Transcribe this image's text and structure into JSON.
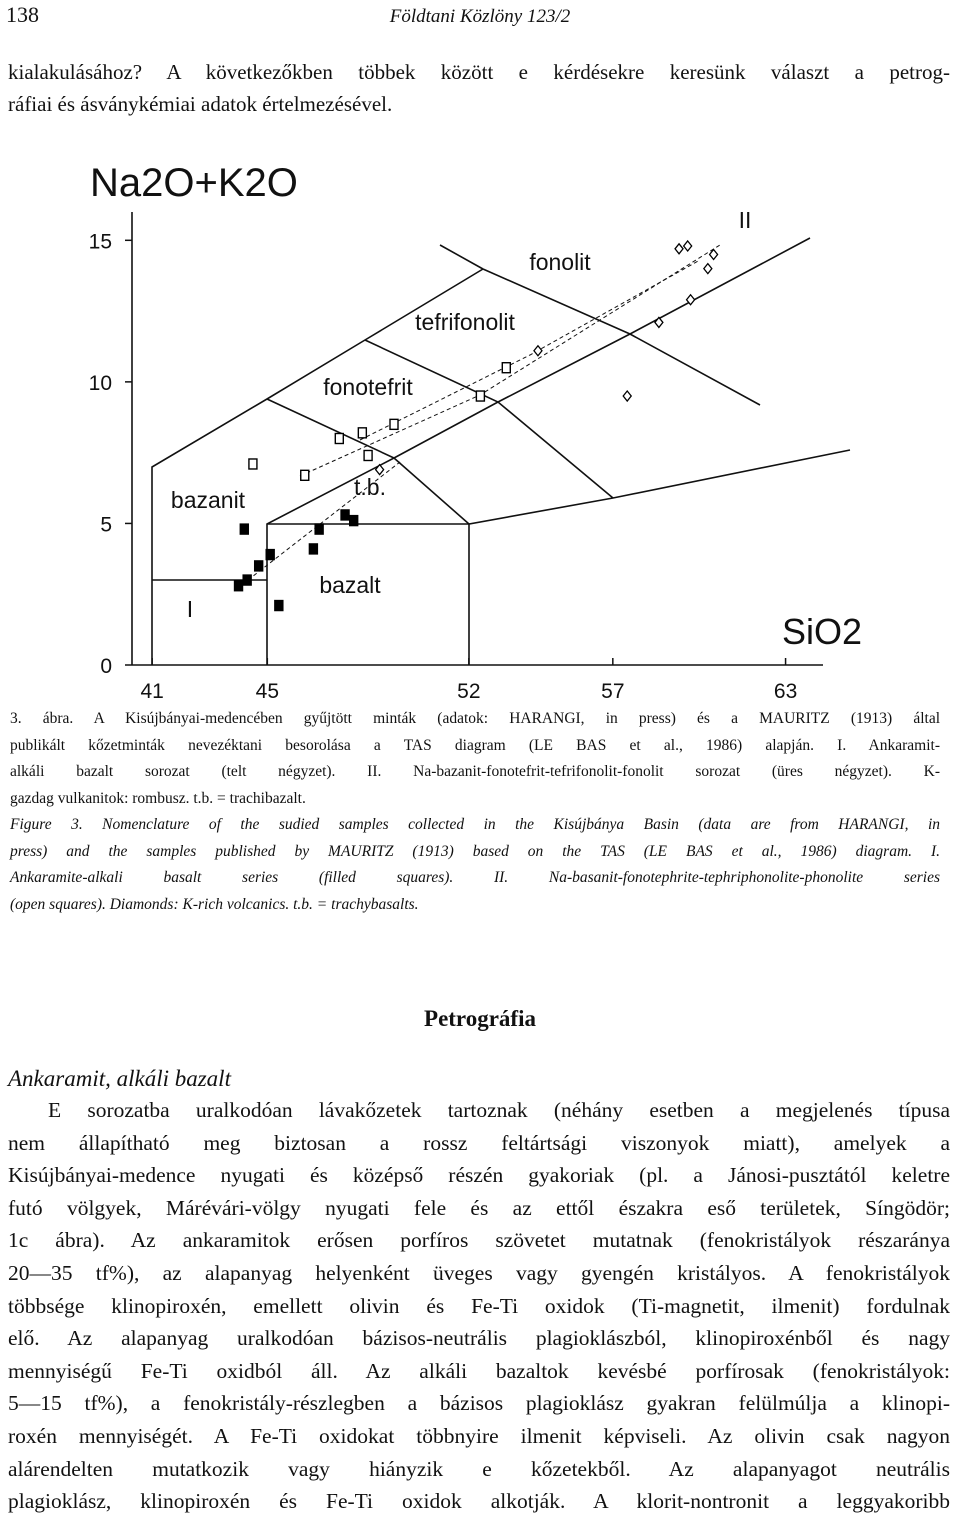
{
  "header": {
    "page_number": "138",
    "journal": "Földtani Közlöny 123/2"
  },
  "intro": {
    "lines": [
      "kialakulásához? A következőkben többek között e kérdésekre keresünk választ a petrog-",
      "ráfiai és ásványkémiai adatok értelmezésével."
    ]
  },
  "chart_data": {
    "type": "scatter",
    "y_label": "Na2O+K2O",
    "x_label": "SiO2",
    "xlim": [
      40.3,
      64.3
    ],
    "ylim": [
      0,
      16
    ],
    "xticks": [
      41,
      45,
      52,
      57,
      63
    ],
    "yticks": [
      0,
      5,
      10,
      15
    ],
    "annotations": [
      "fonolit",
      "tefrifonolit",
      "fonotefrit",
      "bazanit",
      "t.b.",
      "bazalt",
      "I",
      "II"
    ],
    "series": [
      {
        "marker": "filled-square",
        "color": "#000000",
        "x": [
          44.2,
          44.7,
          44.3,
          44.0,
          45.1,
          45.4,
          46.6,
          46.8,
          47.7,
          48.0
        ],
        "values": [
          4.8,
          3.5,
          3.0,
          2.8,
          3.9,
          2.1,
          4.1,
          4.8,
          5.3,
          5.1
        ]
      },
      {
        "marker": "open-square",
        "color": "#000000",
        "x": [
          44.5,
          46.3,
          47.5,
          48.3,
          49.4,
          48.5,
          52.4,
          53.3
        ],
        "values": [
          7.1,
          6.7,
          8.0,
          8.2,
          8.5,
          7.4,
          9.5,
          10.5
        ]
      },
      {
        "marker": "diamond",
        "color": "#000000",
        "x": [
          48.9,
          54.4,
          57.5,
          58.6,
          59.3,
          59.7,
          60.3,
          59.6,
          60.5
        ],
        "values": [
          6.9,
          11.1,
          9.5,
          12.1,
          14.7,
          12.9,
          14.0,
          14.8,
          14.5
        ]
      }
    ]
  },
  "caption_hu": {
    "lines": [
      "3. ábra. A Kisújbányai-medencében gyűjtött minták (adatok: HARANGI, in press) és a MAURITZ (1913) által",
      "publikált kőzetminták nevezéktani besorolása a TAS diagram (LE BAS et al., 1986) alapján. I. Ankaramit-",
      "alkáli bazalt sorozat (telt négyzet). II. Na-bazanit-fonotefrit-tefrifonolit-fonolit sorozat (üres négyzet). K-",
      "gazdag vulkanitok: rombusz. t.b. = trachibazalt."
    ]
  },
  "caption_en": {
    "lines": [
      "Figure 3. Nomenclature of the sudied samples collected in the Kisújbánya Basin (data are from HARANGI, in",
      "press) and the samples published by MAURITZ (1913) based on the TAS (LE BAS et al., 1986) diagram. I.",
      "Ankaramite-alkali basalt series (filled squares). II. Na-basanit-fonotephrite-tephriphonolite-phonolite series",
      "(open squares). Diamonds: K-rich volcanics. t.b. = trachybasalts."
    ]
  },
  "section": {
    "title": "Petrográfia",
    "subtitle": "Ankaramit, alkáli bazalt",
    "lines": [
      "E sorozatba uralkodóan lávakőzetek tartoznak (néhány esetben a megjelenés típusa",
      "nem állapítható meg biztosan a rossz feltártsági viszonyok miatt), amelyek a",
      "Kisújbányai-medence nyugati és középső részén gyakoriak (pl. a Jánosi-pusztától keletre",
      "futó völgyek, Márévári-völgy nyugati fele és az ettől északra eső területek, Síngödör;",
      "1c ábra). Az ankaramitok erősen porfíros szövetet mutatnak (fenokristályok részaránya",
      "20—35 tf%), az alapanyag helyenként üveges vagy gyengén kristályos. A fenokristályok",
      "többsége klinopiroxén, emellett olivin és Fe-Ti oxidok (Ti-magnetit, ilmenit) fordulnak",
      "elő. Az alapanyag uralkodóan bázisos-neutrális plagioklászból, klinopiroxénből és nagy",
      "mennyiségű Fe-Ti oxidból áll. Az alkáli bazaltok kevésbé porfírosak (fenokristályok:",
      "5—15 tf%), a fenokristály-részlegben a bázisos plagioklász gyakran felülmúlja a klinopi-",
      "roxén mennyiségét. A Fe-Ti oxidokat többnyire ilmenit képviseli. Az olivin csak nagyon",
      "alárendelten mutatkozik vagy hiányzik e kőzetekből. Az alapanyagot neutrális",
      "plagioklász, klinopiroxén és Fe-Ti oxidok alkotják. A klorit-nontronit a leggyakoribb"
    ]
  }
}
